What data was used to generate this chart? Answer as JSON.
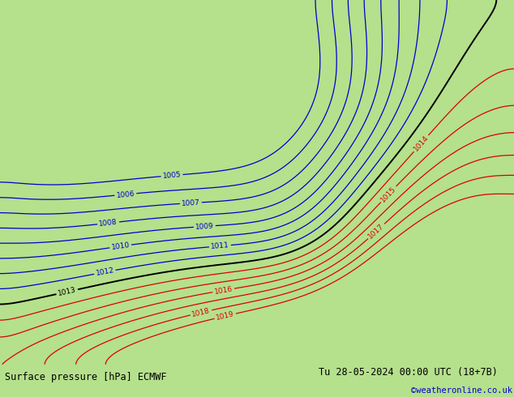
{
  "title_left": "Surface pressure [hPa] ECMWF",
  "title_right": "Tu 28-05-2024 00:00 UTC (18+7B)",
  "watermark": "©weatheronline.co.uk",
  "bg_land_color": "#b5e08c",
  "bg_sea_color": "#d0d0d0",
  "contour_blue_color": "#0000cc",
  "contour_black_color": "#000000",
  "contour_red_color": "#dd0000",
  "label_blue_color": "#0000cc",
  "label_black_color": "#000000",
  "label_red_color": "#dd0000",
  "bottom_bar_color": "#c0c0c0",
  "bottom_text_color": "#000000",
  "watermark_color": "#0000cc",
  "border_color": "#888888",
  "figsize": [
    6.34,
    4.9
  ],
  "dpi": 100,
  "pressure_base": 1013.0,
  "contour_levels": [
    1005,
    1006,
    1007,
    1008,
    1009,
    1010,
    1011,
    1012,
    1013,
    1014,
    1015,
    1016,
    1017,
    1018,
    1019
  ],
  "black_level": 1013
}
